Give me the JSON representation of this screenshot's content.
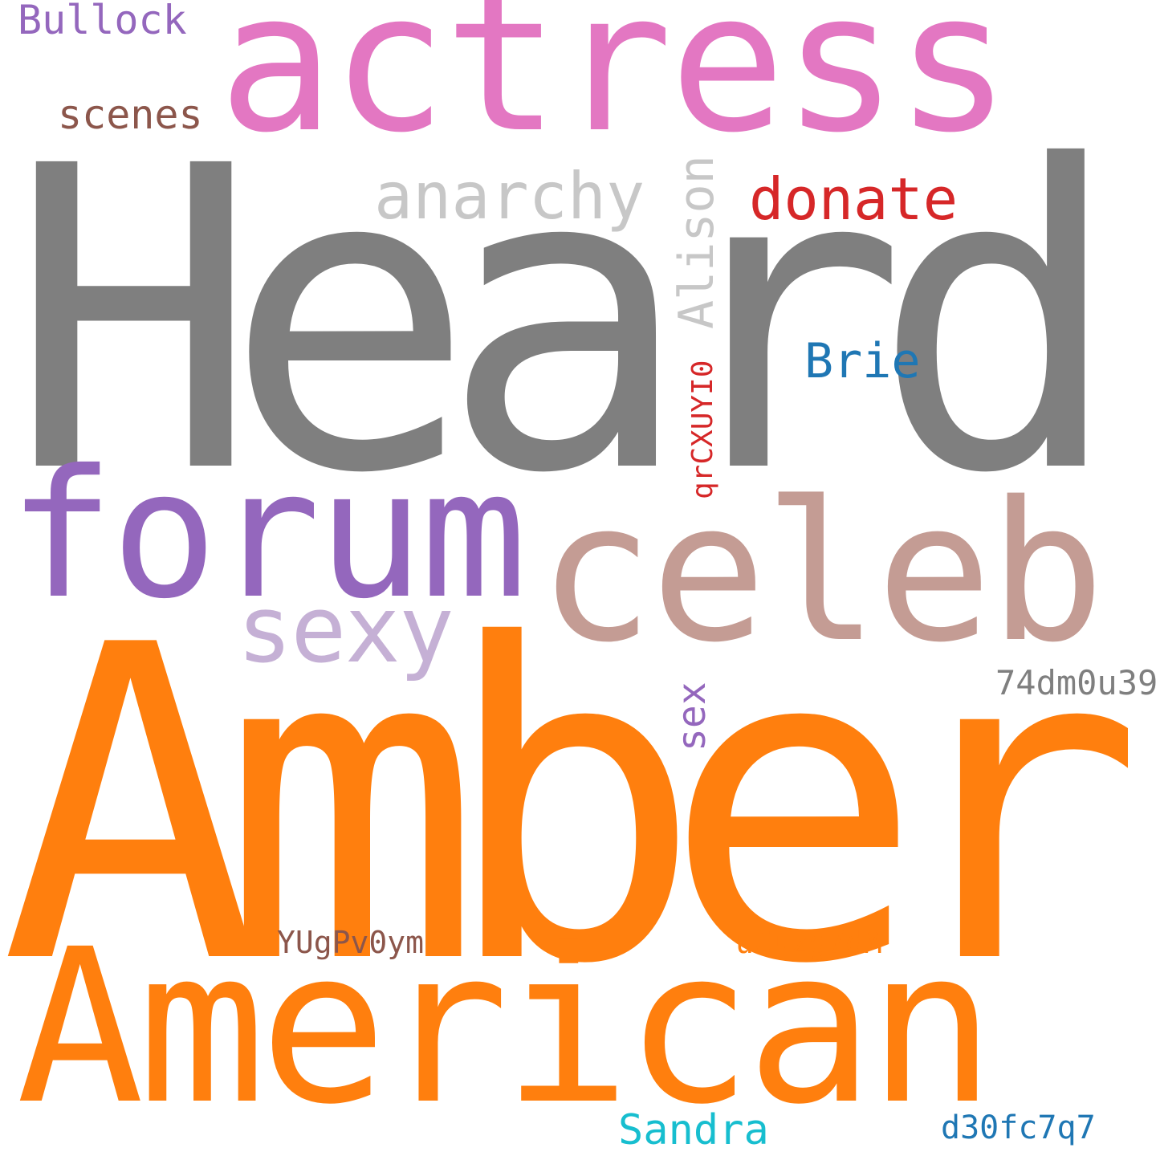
{
  "background_color": "#ffffff",
  "words": {
    "heard": {
      "text": "Heard",
      "color": "#7f7f7f"
    },
    "amber": {
      "text": "Amber",
      "color": "#ff7f0e"
    },
    "american": {
      "text": "American",
      "color": "#ff7f0e"
    },
    "actress": {
      "text": "actress",
      "color": "#e377c2"
    },
    "forum": {
      "text": "forum",
      "color": "#9467bd"
    },
    "celeb": {
      "text": "celeb",
      "color": "#c49c94"
    },
    "sexy": {
      "text": "sexy",
      "color": "#c5b0d5"
    },
    "anarchy": {
      "text": "anarchy",
      "color": "#c7c7c7"
    },
    "donate": {
      "text": "donate",
      "color": "#d62728"
    },
    "bullock": {
      "text": "Bullock",
      "color": "#9467bd"
    },
    "scenes": {
      "text": "scenes",
      "color": "#8c564b"
    },
    "brie": {
      "text": "Brie",
      "color": "#1f77b4"
    },
    "alison": {
      "text": "Alison",
      "color": "#c7c7c7"
    },
    "qrcx": {
      "text": "qrCXUYI0",
      "color": "#d62728"
    },
    "sex": {
      "text": "sex",
      "color": "#9467bd"
    },
    "dm": {
      "text": "74dm0u39",
      "color": "#7f7f7f"
    },
    "yugp": {
      "text": "YUgPv0ym",
      "color": "#8c564b"
    },
    "ucuz": {
      "text": "uCuzg7dM",
      "color": "#ff7f0e"
    },
    "sandra": {
      "text": "Sandra",
      "color": "#17becf"
    },
    "d30f": {
      "text": "d30fc7q7",
      "color": "#1f77b4"
    }
  }
}
